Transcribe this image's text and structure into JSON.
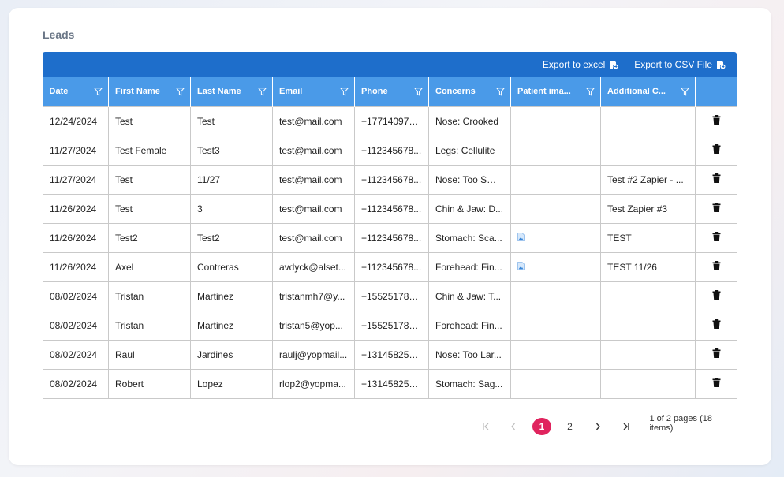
{
  "page": {
    "title": "Leads"
  },
  "toolbar": {
    "export_excel": "Export to excel",
    "export_csv": "Export to CSV File"
  },
  "columns": [
    "Date",
    "First Name",
    "Last Name",
    "Email",
    "Phone",
    "Concerns",
    "Patient ima...",
    "Additional C..."
  ],
  "rows": [
    {
      "date": "12/24/2024",
      "first": "Test",
      "last": "Test",
      "email": "test@mail.com",
      "phone": "+177140976...",
      "concerns": "Nose: Crooked",
      "image": false,
      "additional": ""
    },
    {
      "date": "11/27/2024",
      "first": "Test Female",
      "last": "Test3",
      "email": "test@mail.com",
      "phone": "+112345678...",
      "concerns": "Legs: Cellulite",
      "image": false,
      "additional": ""
    },
    {
      "date": "11/27/2024",
      "first": "Test",
      "last": "11/27",
      "email": "test@mail.com",
      "phone": "+112345678...",
      "concerns": "Nose: Too Small",
      "image": false,
      "additional": "Test #2 Zapier - ..."
    },
    {
      "date": "11/26/2024",
      "first": "Test",
      "last": "3",
      "email": "test@mail.com",
      "phone": "+112345678...",
      "concerns": "Chin & Jaw: D...",
      "image": false,
      "additional": "Test Zapier #3"
    },
    {
      "date": "11/26/2024",
      "first": "Test2",
      "last": "Test2",
      "email": "test@mail.com",
      "phone": "+112345678...",
      "concerns": "Stomach: Sca...",
      "image": true,
      "additional": "TEST"
    },
    {
      "date": "11/26/2024",
      "first": "Axel",
      "last": "Contreras",
      "email": "avdyck@alset...",
      "phone": "+112345678...",
      "concerns": "Forehead: Fin...",
      "image": true,
      "additional": "TEST 11/26"
    },
    {
      "date": "08/02/2024",
      "first": "Tristan",
      "last": "Martinez",
      "email": "tristanmh7@y...",
      "phone": "+155251785...",
      "concerns": "Chin & Jaw: T...",
      "image": false,
      "additional": ""
    },
    {
      "date": "08/02/2024",
      "first": "Tristan",
      "last": "Martinez",
      "email": "tristan5@yop...",
      "phone": "+155251785...",
      "concerns": "Forehead: Fin...",
      "image": false,
      "additional": ""
    },
    {
      "date": "08/02/2024",
      "first": "Raul",
      "last": "Jardines",
      "email": "raulj@yopmail...",
      "phone": "+131458257...",
      "concerns": "Nose: Too Lar...",
      "image": false,
      "additional": ""
    },
    {
      "date": "08/02/2024",
      "first": "Robert",
      "last": "Lopez",
      "email": "rlop2@yopma...",
      "phone": "+131458257...",
      "concerns": "Stomach: Sag...",
      "image": false,
      "additional": ""
    }
  ],
  "pager": {
    "pages": [
      "1",
      "2"
    ],
    "current": "1",
    "info": "1 of 2 pages (18 items)"
  },
  "icons": {
    "filter": "filter-icon",
    "delete": "trash-icon",
    "image": "image-icon",
    "export": "export-file-icon"
  },
  "colors": {
    "toolbar": "#1e6ecb",
    "header": "#4a9ae8",
    "active_page": "#e0245e"
  }
}
